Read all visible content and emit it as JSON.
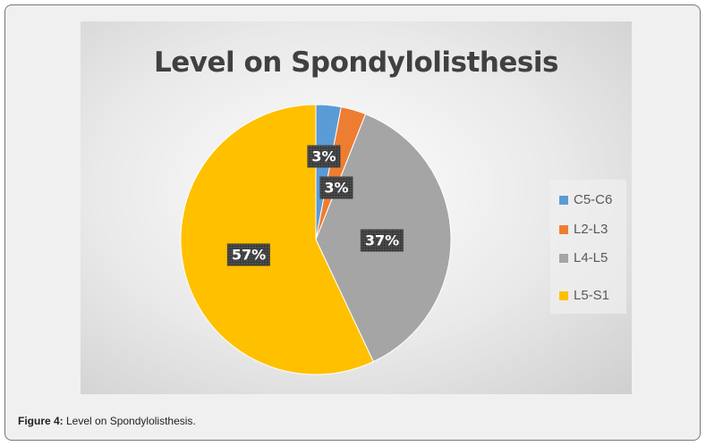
{
  "chart_data": {
    "type": "pie",
    "title": "Level on Spondylolisthesis",
    "categories": [
      "C5-C6",
      "L2-L3",
      "L4-L5",
      "L5-S1"
    ],
    "values": [
      3,
      3,
      37,
      57
    ],
    "labels": [
      "3%",
      "3%",
      "37%",
      "57%"
    ],
    "colors": [
      "#5b9bd5",
      "#ed7d31",
      "#a5a5a5",
      "#ffc000"
    ],
    "legend_placement": "right"
  },
  "caption": {
    "prefix": "Figure 4:",
    "text": " Level on Spondylolisthesis."
  }
}
